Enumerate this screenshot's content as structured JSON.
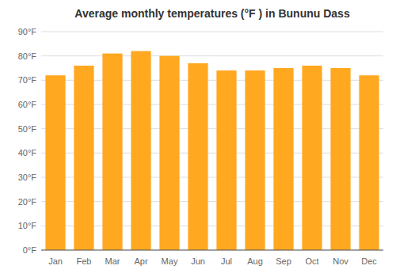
{
  "chart_data": {
    "type": "bar",
    "title": "Average monthly temperatures (°F ) in Bununu Dass",
    "categories": [
      "Jan",
      "Feb",
      "Mar",
      "Apr",
      "May",
      "Jun",
      "Jul",
      "Aug",
      "Sep",
      "Oct",
      "Nov",
      "Dec"
    ],
    "values": [
      72,
      76,
      81,
      82,
      80,
      77,
      74,
      74,
      75,
      76,
      75,
      72
    ],
    "color": "#FFA820",
    "ylim": [
      0,
      90
    ],
    "yticks": [
      {
        "value": 0,
        "label": "0°F"
      },
      {
        "value": 10,
        "label": "10°F"
      },
      {
        "value": 20,
        "label": "20°F"
      },
      {
        "value": 30,
        "label": "30°F"
      },
      {
        "value": 40,
        "label": "40°F"
      },
      {
        "value": 50,
        "label": "50°F"
      },
      {
        "value": 60,
        "label": "60°F"
      },
      {
        "value": 70,
        "label": "70°F"
      },
      {
        "value": 80,
        "label": "80°F"
      },
      {
        "value": 90,
        "label": "90°F"
      }
    ],
    "grid": true
  }
}
